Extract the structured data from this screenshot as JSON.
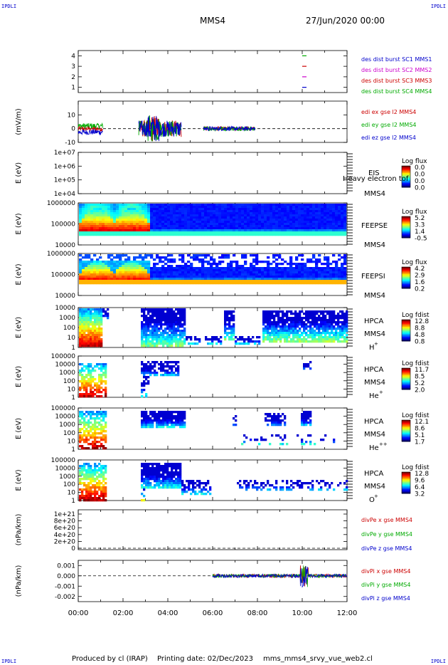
{
  "corner_label": "IPDLI",
  "header": {
    "spacecraft": "MMS4",
    "datetime": "27/Jun/2020 00:00"
  },
  "footer": {
    "produced_by": "Produced by cl (IRAP)",
    "printing_date": "Printing date: 02/Dec/2023",
    "script": "mms_mms4_srvy_vue_web2.cl"
  },
  "chart_data": [
    {
      "id": "p1",
      "type": "line",
      "ylim": [
        0.5,
        4.5
      ],
      "yticks": [
        "1",
        "2",
        "3",
        "4"
      ],
      "legend": [
        {
          "label": "des dist burst SC1 MMS1",
          "color": "#0000cc"
        },
        {
          "label": "des dist burst SC2 MMS2",
          "color": "#cc00cc"
        },
        {
          "label": "des dist burst SC3 MMS3",
          "color": "#cc0000"
        },
        {
          "label": "des dist burst SC4 MMS4",
          "color": "#00aa00"
        }
      ],
      "series": [
        {
          "level": 4,
          "color": "#00aa00",
          "x": [
            10.0,
            10.25
          ]
        },
        {
          "level": 3,
          "color": "#cc0000",
          "x": [
            10.0,
            10.25
          ]
        },
        {
          "level": 2,
          "color": "#cc00cc",
          "x": [
            10.0,
            10.25
          ]
        },
        {
          "level": 1,
          "color": "#0000cc",
          "x": [
            10.0,
            10.25
          ]
        }
      ]
    },
    {
      "id": "p2",
      "type": "line",
      "ylabel": "(mV/m)",
      "ylim": [
        -10,
        20
      ],
      "yticks": [
        "10",
        "0",
        "-10"
      ],
      "ytick_values": [
        10,
        0,
        -10
      ],
      "legend": [
        {
          "label": "edi ex gse l2 MMS4",
          "color": "#cc0000"
        },
        {
          "label": "edi ey gse l2 MMS4",
          "color": "#00aa00"
        },
        {
          "label": "edi ez gse l2 MMS4",
          "color": "#0000cc"
        }
      ],
      "segments": [
        [
          0.0,
          1.1
        ],
        [
          2.7,
          4.6
        ],
        [
          5.6,
          7.9
        ]
      ]
    },
    {
      "id": "p3",
      "type": "heatmap",
      "ylabel": "E (eV)",
      "yticks": [
        "1e+07",
        "1e+06",
        "1e+05",
        "1e+04"
      ],
      "instrument": [
        "EIS",
        "MMS4"
      ],
      "overlay_text": "Heavy electron tof",
      "colorbar": {
        "title": "Log flux",
        "ticks": [
          "0.0",
          "0.0",
          "0.0",
          "0.0"
        ]
      }
    },
    {
      "id": "p4",
      "type": "heatmap",
      "ylabel": "E (eV)",
      "yticks": [
        "1000000",
        "100000",
        "10000"
      ],
      "instrument": [
        "FEEPSE",
        "MMS4"
      ],
      "colorbar": {
        "title": "Log flux",
        "ticks": [
          "5.2",
          "3.3",
          "1.4",
          "-0.5"
        ]
      }
    },
    {
      "id": "p5",
      "type": "heatmap",
      "ylabel": "E (eV)",
      "yticks": [
        "1000000",
        "100000",
        "10000"
      ],
      "instrument": [
        "FEEPSI",
        "MMS4"
      ],
      "colorbar": {
        "title": "Log flux",
        "ticks": [
          "4.2",
          "2.9",
          "1.6",
          "0.2"
        ]
      }
    },
    {
      "id": "p6",
      "type": "heatmap",
      "ylabel": "E (eV)",
      "yticks": [
        "10000",
        "1000",
        "100",
        "10",
        "1"
      ],
      "instrument": [
        "HPCA",
        "MMS4"
      ],
      "species": "H",
      "charge": "+",
      "colorbar": {
        "title": "Log fdist",
        "ticks": [
          "12.8",
          "8.8",
          "4.8",
          "0.8"
        ]
      }
    },
    {
      "id": "p7",
      "type": "heatmap",
      "ylabel": "E (eV)",
      "yticks": [
        "100000",
        "10000",
        "1000",
        "100",
        "10",
        "1"
      ],
      "instrument": [
        "HPCA",
        "MMS4"
      ],
      "species": "He",
      "charge": "+",
      "colorbar": {
        "title": "Log fdist",
        "ticks": [
          "11.7",
          "8.5",
          "5.2",
          "2.0"
        ]
      }
    },
    {
      "id": "p8",
      "type": "heatmap",
      "ylabel": "E (eV)",
      "yticks": [
        "100000",
        "10000",
        "1000",
        "100",
        "10",
        "1"
      ],
      "instrument": [
        "HPCA",
        "MMS4"
      ],
      "species": "He",
      "charge": "++",
      "colorbar": {
        "title": "Log fdist",
        "ticks": [
          "12.1",
          "8.6",
          "5.1",
          "1.7"
        ]
      }
    },
    {
      "id": "p9",
      "type": "heatmap",
      "ylabel": "E (eV)",
      "yticks": [
        "100000",
        "10000",
        "1000",
        "100",
        "10",
        "1"
      ],
      "instrument": [
        "HPCA",
        "MMS4"
      ],
      "species": "O",
      "charge": "+",
      "colorbar": {
        "title": "Log fdist",
        "ticks": [
          "12.8",
          "9.6",
          "6.4",
          "3.2"
        ]
      }
    },
    {
      "id": "p10",
      "type": "line",
      "ylabel": "(nPa/km)",
      "yticks": [
        "1e+21",
        "8e+20",
        "6e+20",
        "4e+20",
        "2e+20",
        "0"
      ],
      "legend": [
        {
          "label": "divPe x gse MMS4",
          "color": "#cc0000"
        },
        {
          "label": "divPe y gse MMS4",
          "color": "#00aa00"
        },
        {
          "label": "divPe z gse MMS4",
          "color": "#0000cc"
        }
      ]
    },
    {
      "id": "p11",
      "type": "line",
      "ylabel": "(nPa/km)",
      "ylim": [
        -0.0025,
        0.0015
      ],
      "yticks": [
        "0.001",
        "0.000",
        "-0.001",
        "-0.002"
      ],
      "ytick_values": [
        0.001,
        0,
        -0.001,
        -0.002
      ],
      "legend": [
        {
          "label": "divPi x gse MMS4",
          "color": "#cc0000"
        },
        {
          "label": "divPi y gse MMS4",
          "color": "#00aa00"
        },
        {
          "label": "divPi z gse MMS4",
          "color": "#0000cc"
        }
      ],
      "data_range": [
        6.0,
        12.0
      ]
    }
  ],
  "time_axis": {
    "range_hours": [
      0,
      12
    ],
    "ticks": [
      "00:00",
      "02:00",
      "04:00",
      "06:00",
      "08:00",
      "10:00",
      "12:00"
    ]
  }
}
